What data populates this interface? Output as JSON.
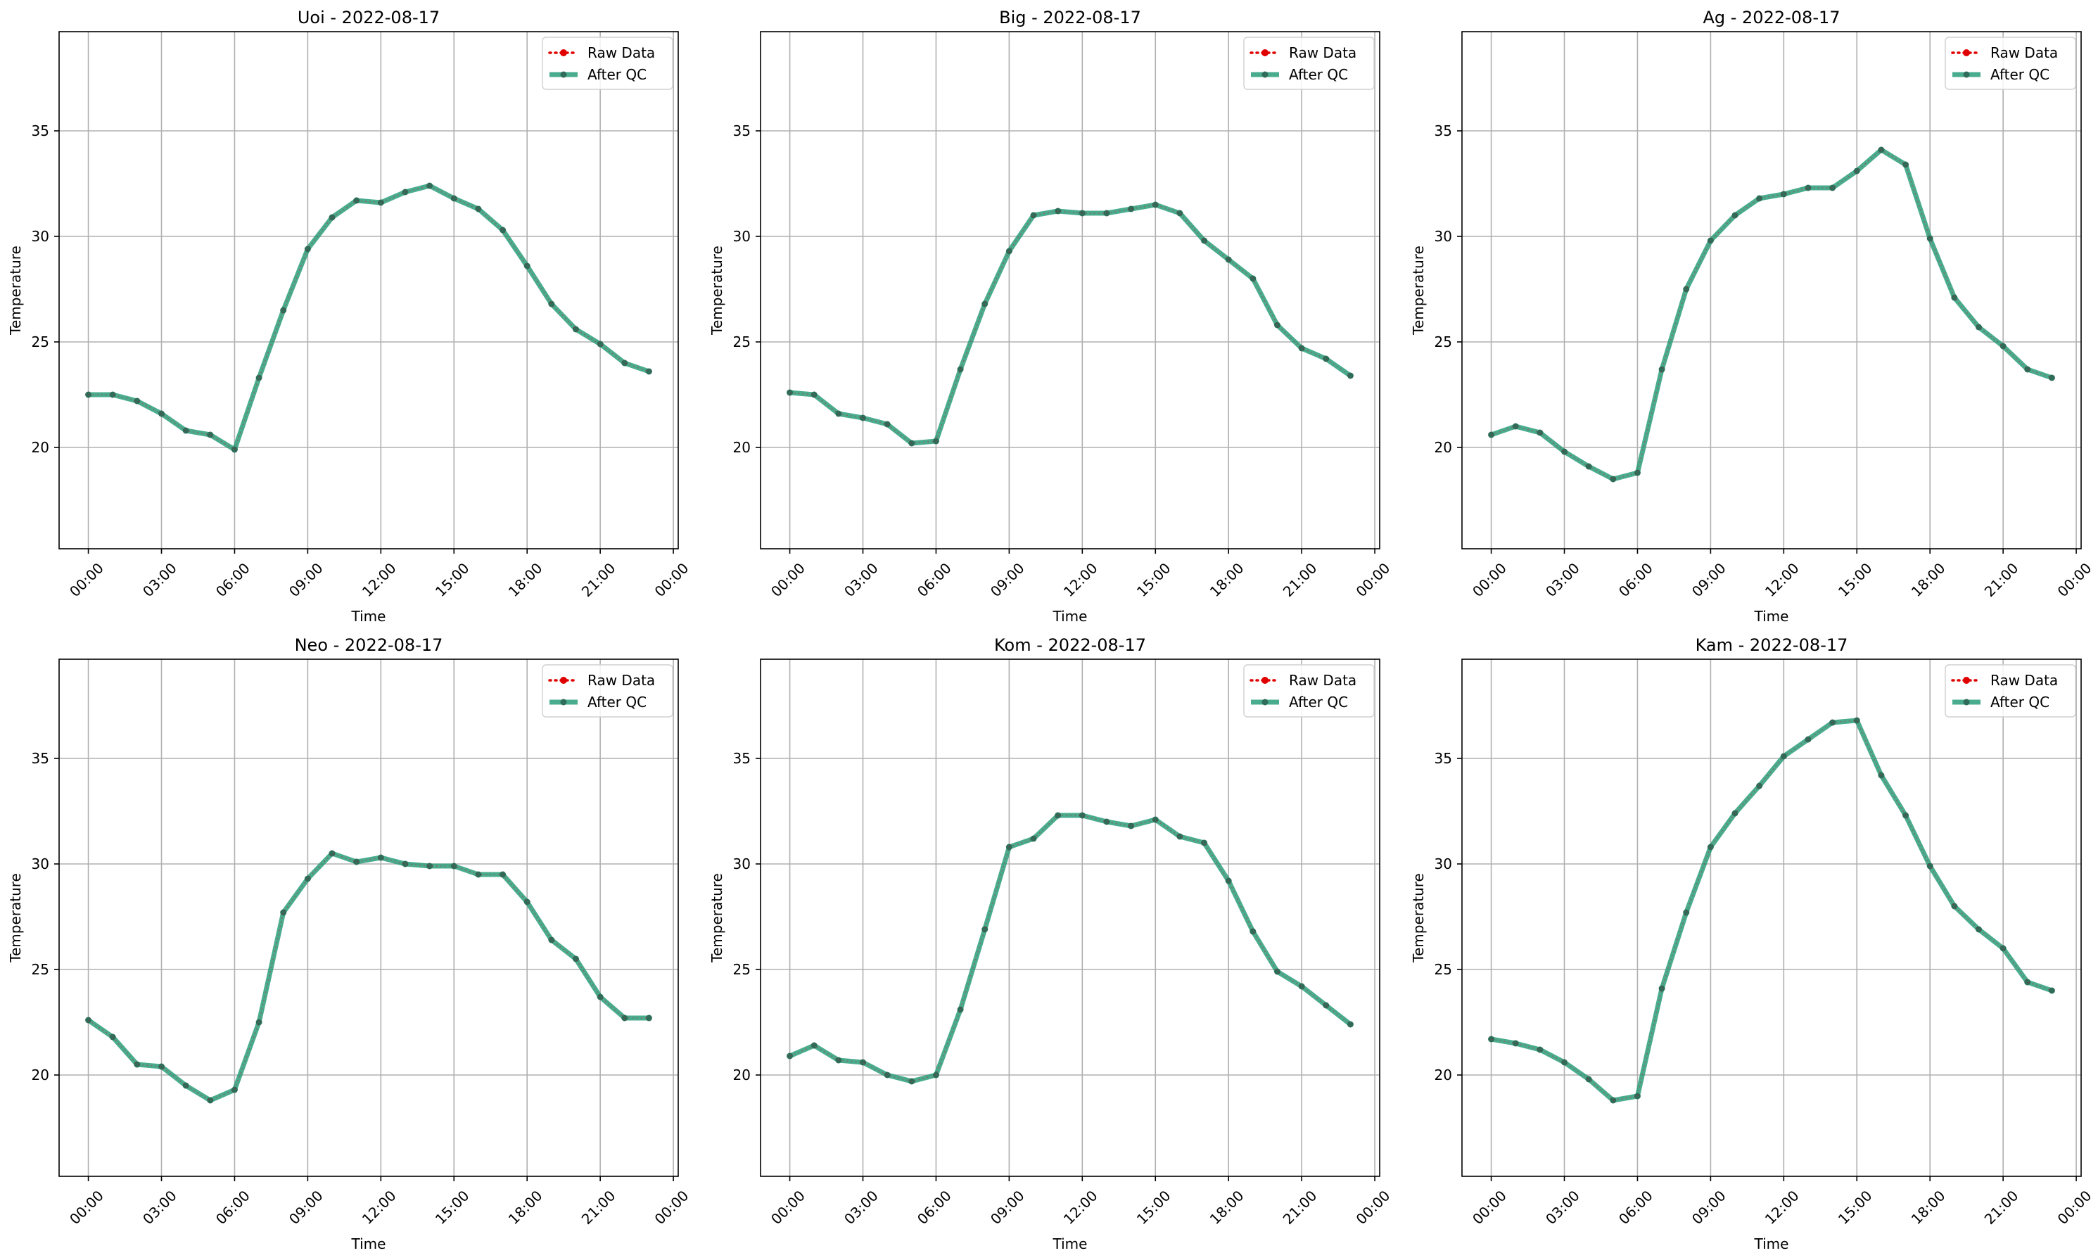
{
  "figure": {
    "colors": {
      "raw": "#e00000",
      "qc": "#2a9d7a",
      "qc_marker": "#2f6d5a",
      "grid": "#b0b0b0"
    }
  },
  "chart_data": [
    {
      "type": "line",
      "title": "Uoi - 2022-08-17",
      "xlabel": "Time",
      "ylabel": "Temperature",
      "ylim": [
        15.2,
        39.7
      ],
      "yticks": [
        20,
        25,
        30,
        35
      ],
      "x_ticks": [
        "00:00",
        "03:00",
        "06:00",
        "09:00",
        "12:00",
        "15:00",
        "18:00",
        "21:00",
        "00:00"
      ],
      "x_hours": [
        0,
        1,
        2,
        3,
        4,
        5,
        6,
        7,
        8,
        9,
        10,
        11,
        12,
        13,
        14,
        15,
        16,
        17,
        18,
        19,
        20,
        21,
        22,
        23
      ],
      "grid": true,
      "legend": {
        "position": "top-right",
        "entries": [
          "Raw Data",
          "After QC"
        ]
      },
      "series": [
        {
          "name": "Raw Data",
          "values": [
            22.5,
            22.5,
            22.2,
            21.6,
            20.8,
            20.6,
            19.9,
            23.3,
            26.5,
            29.4,
            30.9,
            31.7,
            31.6,
            32.1,
            32.4,
            31.8,
            31.3,
            30.3,
            28.6,
            26.8,
            25.6,
            24.9,
            24.0,
            23.6
          ]
        },
        {
          "name": "After QC",
          "values": [
            22.5,
            22.5,
            22.2,
            21.6,
            20.8,
            20.6,
            19.9,
            23.3,
            26.5,
            29.4,
            30.9,
            31.7,
            31.6,
            32.1,
            32.4,
            31.8,
            31.3,
            30.3,
            28.6,
            26.8,
            25.6,
            24.9,
            24.0,
            23.6
          ]
        }
      ]
    },
    {
      "type": "line",
      "title": "Big - 2022-08-17",
      "xlabel": "Time",
      "ylabel": "Temperature",
      "ylim": [
        15.2,
        39.7
      ],
      "yticks": [
        20,
        25,
        30,
        35
      ],
      "x_ticks": [
        "00:00",
        "03:00",
        "06:00",
        "09:00",
        "12:00",
        "15:00",
        "18:00",
        "21:00",
        "00:00"
      ],
      "x_hours": [
        0,
        1,
        2,
        3,
        4,
        5,
        6,
        7,
        8,
        9,
        10,
        11,
        12,
        13,
        14,
        15,
        16,
        17,
        18,
        19,
        20,
        21,
        22,
        23
      ],
      "grid": true,
      "legend": {
        "position": "top-right",
        "entries": [
          "Raw Data",
          "After QC"
        ]
      },
      "series": [
        {
          "name": "Raw Data",
          "values": [
            22.6,
            22.5,
            21.6,
            21.4,
            21.1,
            20.2,
            20.3,
            23.7,
            26.8,
            29.3,
            31.0,
            31.2,
            31.1,
            31.1,
            31.3,
            31.5,
            31.1,
            29.8,
            28.9,
            28.0,
            25.8,
            24.7,
            24.2,
            23.4
          ]
        },
        {
          "name": "After QC",
          "values": [
            22.6,
            22.5,
            21.6,
            21.4,
            21.1,
            20.2,
            20.3,
            23.7,
            26.8,
            29.3,
            31.0,
            31.2,
            31.1,
            31.1,
            31.3,
            31.5,
            31.1,
            29.8,
            28.9,
            28.0,
            25.8,
            24.7,
            24.2,
            23.4
          ]
        }
      ]
    },
    {
      "type": "line",
      "title": "Ag - 2022-08-17",
      "xlabel": "Time",
      "ylabel": "Temperature",
      "ylim": [
        15.2,
        39.7
      ],
      "yticks": [
        20,
        25,
        30,
        35
      ],
      "x_ticks": [
        "00:00",
        "03:00",
        "06:00",
        "09:00",
        "12:00",
        "15:00",
        "18:00",
        "21:00",
        "00:00"
      ],
      "x_hours": [
        0,
        1,
        2,
        3,
        4,
        5,
        6,
        7,
        8,
        9,
        10,
        11,
        12,
        13,
        14,
        15,
        16,
        17,
        18,
        19,
        20,
        21,
        22,
        23
      ],
      "grid": true,
      "legend": {
        "position": "top-right",
        "entries": [
          "Raw Data",
          "After QC"
        ]
      },
      "series": [
        {
          "name": "Raw Data",
          "values": [
            20.6,
            21.0,
            20.7,
            19.8,
            19.1,
            18.5,
            18.8,
            23.7,
            27.5,
            29.8,
            31.0,
            31.8,
            32.0,
            32.3,
            32.3,
            33.1,
            34.1,
            33.4,
            29.9,
            27.1,
            25.7,
            24.8,
            23.7,
            23.3
          ]
        },
        {
          "name": "After QC",
          "values": [
            20.6,
            21.0,
            20.7,
            19.8,
            19.1,
            18.5,
            18.8,
            23.7,
            27.5,
            29.8,
            31.0,
            31.8,
            32.0,
            32.3,
            32.3,
            33.1,
            34.1,
            33.4,
            29.9,
            27.1,
            25.7,
            24.8,
            23.7,
            23.3
          ]
        }
      ]
    },
    {
      "type": "line",
      "title": "Neo - 2022-08-17",
      "xlabel": "Time",
      "ylabel": "Temperature",
      "ylim": [
        15.2,
        39.7
      ],
      "yticks": [
        20,
        25,
        30,
        35
      ],
      "x_ticks": [
        "00:00",
        "03:00",
        "06:00",
        "09:00",
        "12:00",
        "15:00",
        "18:00",
        "21:00",
        "00:00"
      ],
      "x_hours": [
        0,
        1,
        2,
        3,
        4,
        5,
        6,
        7,
        8,
        9,
        10,
        11,
        12,
        13,
        14,
        15,
        16,
        17,
        18,
        19,
        20,
        21,
        22,
        23
      ],
      "grid": true,
      "legend": {
        "position": "top-right",
        "entries": [
          "Raw Data",
          "After QC"
        ]
      },
      "series": [
        {
          "name": "Raw Data",
          "values": [
            22.6,
            21.8,
            20.5,
            20.4,
            19.5,
            18.8,
            19.3,
            22.5,
            27.7,
            29.3,
            30.5,
            30.1,
            30.3,
            30.0,
            29.9,
            29.9,
            29.5,
            29.5,
            28.2,
            26.4,
            25.5,
            23.7,
            22.7,
            22.7
          ]
        },
        {
          "name": "After QC",
          "values": [
            22.6,
            21.8,
            20.5,
            20.4,
            19.5,
            18.8,
            19.3,
            22.5,
            27.7,
            29.3,
            30.5,
            30.1,
            30.3,
            30.0,
            29.9,
            29.9,
            29.5,
            29.5,
            28.2,
            26.4,
            25.5,
            23.7,
            22.7,
            22.7
          ]
        }
      ]
    },
    {
      "type": "line",
      "title": "Kom - 2022-08-17",
      "xlabel": "Time",
      "ylabel": "Temperature",
      "ylim": [
        15.2,
        39.7
      ],
      "yticks": [
        20,
        25,
        30,
        35
      ],
      "x_ticks": [
        "00:00",
        "03:00",
        "06:00",
        "09:00",
        "12:00",
        "15:00",
        "18:00",
        "21:00",
        "00:00"
      ],
      "x_hours": [
        0,
        1,
        2,
        3,
        4,
        5,
        6,
        7,
        8,
        9,
        10,
        11,
        12,
        13,
        14,
        15,
        16,
        17,
        18,
        19,
        20,
        21,
        22,
        23
      ],
      "grid": true,
      "legend": {
        "position": "top-right",
        "entries": [
          "Raw Data",
          "After QC"
        ]
      },
      "series": [
        {
          "name": "Raw Data",
          "values": [
            20.9,
            21.4,
            20.7,
            20.6,
            20.0,
            19.7,
            20.0,
            23.1,
            26.9,
            30.8,
            31.2,
            32.3,
            32.3,
            32.0,
            31.8,
            32.1,
            31.3,
            31.0,
            29.2,
            26.8,
            24.9,
            24.2,
            23.3,
            22.4
          ]
        },
        {
          "name": "After QC",
          "values": [
            20.9,
            21.4,
            20.7,
            20.6,
            20.0,
            19.7,
            20.0,
            23.1,
            26.9,
            30.8,
            31.2,
            32.3,
            32.3,
            32.0,
            31.8,
            32.1,
            31.3,
            31.0,
            29.2,
            26.8,
            24.9,
            24.2,
            23.3,
            22.4
          ]
        }
      ]
    },
    {
      "type": "line",
      "title": "Kam - 2022-08-17",
      "xlabel": "Time",
      "ylabel": "Temperature",
      "ylim": [
        15.2,
        39.7
      ],
      "yticks": [
        20,
        25,
        30,
        35
      ],
      "x_ticks": [
        "00:00",
        "03:00",
        "06:00",
        "09:00",
        "12:00",
        "15:00",
        "18:00",
        "21:00",
        "00:00"
      ],
      "x_hours": [
        0,
        1,
        2,
        3,
        4,
        5,
        6,
        7,
        8,
        9,
        10,
        11,
        12,
        13,
        14,
        15,
        16,
        17,
        18,
        19,
        20,
        21,
        22,
        23
      ],
      "grid": true,
      "legend": {
        "position": "top-right",
        "entries": [
          "Raw Data",
          "After QC"
        ]
      },
      "series": [
        {
          "name": "Raw Data",
          "values": [
            21.7,
            21.5,
            21.2,
            20.6,
            19.8,
            18.8,
            19.0,
            24.1,
            27.7,
            30.8,
            32.4,
            33.7,
            35.1,
            35.9,
            36.7,
            36.8,
            34.2,
            32.3,
            29.9,
            28.0,
            26.9,
            26.0,
            24.4,
            24.0
          ]
        },
        {
          "name": "After QC",
          "values": [
            21.7,
            21.5,
            21.2,
            20.6,
            19.8,
            18.8,
            19.0,
            24.1,
            27.7,
            30.8,
            32.4,
            33.7,
            35.1,
            35.9,
            36.7,
            36.8,
            34.2,
            32.3,
            29.9,
            28.0,
            26.9,
            26.0,
            24.4,
            24.0
          ]
        }
      ]
    }
  ]
}
